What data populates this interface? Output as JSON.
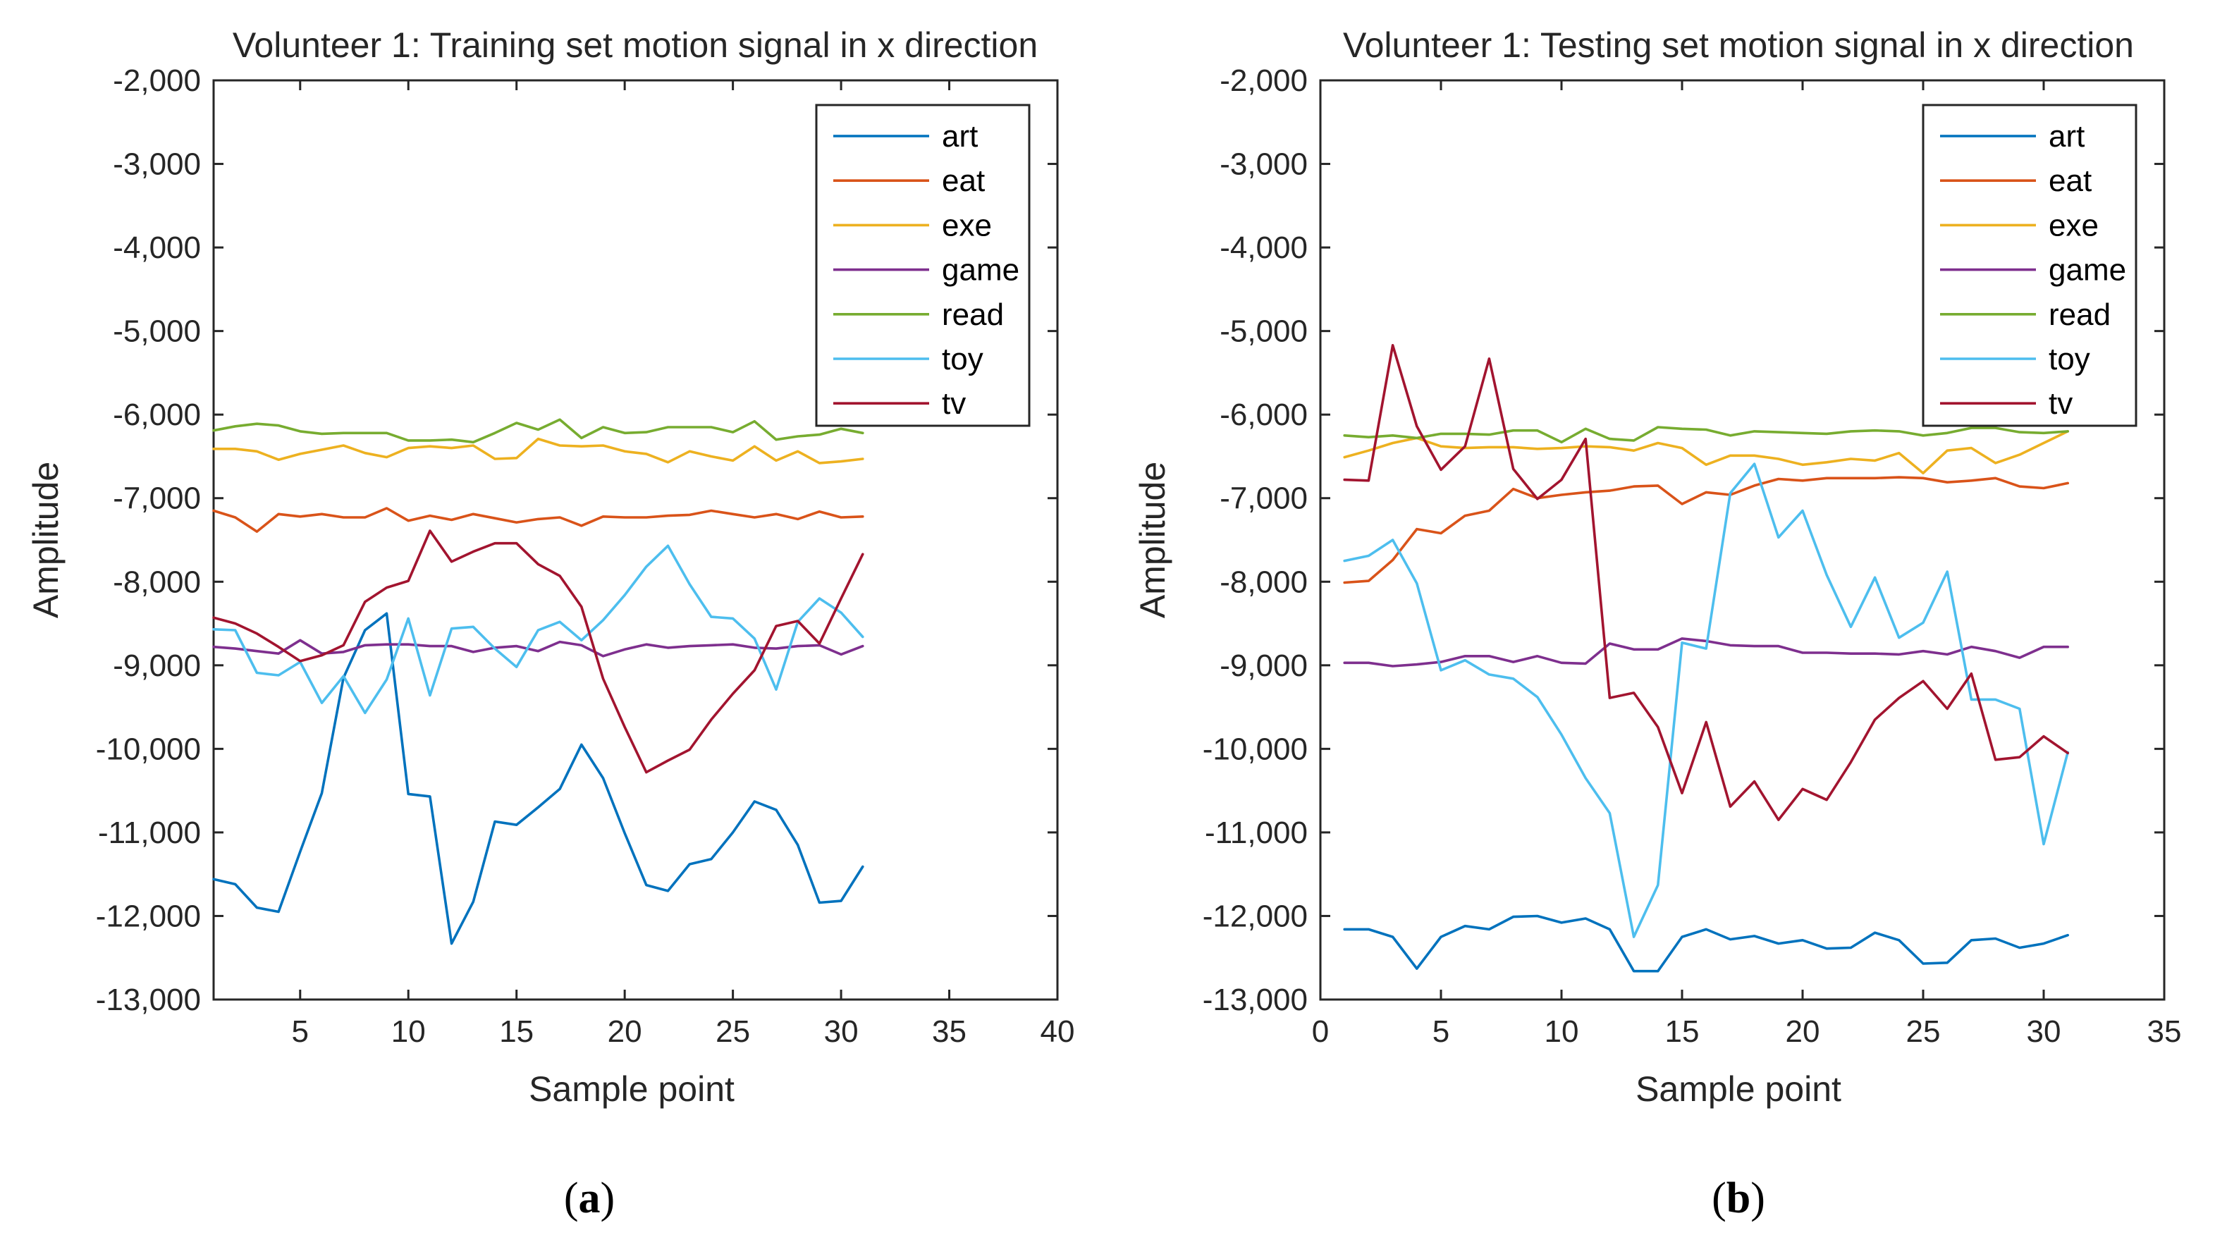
{
  "figure": {
    "panel_labels": [
      {
        "open": "(",
        "letter": "a",
        "close": ")"
      },
      {
        "open": "(",
        "letter": "b",
        "close": ")"
      }
    ]
  },
  "chart_data": [
    {
      "type": "line",
      "title": "Volunteer 1: Training set motion signal in x direction",
      "xlabel": "Sample point",
      "ylabel": "Amplitude",
      "xlim": [
        1,
        40
      ],
      "ylim": [
        -13000,
        -2000
      ],
      "xticks": [
        5,
        10,
        15,
        20,
        25,
        30,
        35,
        40
      ],
      "yticks": [
        -2000,
        -3000,
        -4000,
        -5000,
        -6000,
        -7000,
        -8000,
        -9000,
        -10000,
        -11000,
        -12000,
        -13000
      ],
      "ytick_labels": [
        "-2,000",
        "-3,000",
        "-4,000",
        "-5,000",
        "-6,000",
        "-7,000",
        "-8,000",
        "-9,000",
        "-10,000",
        "-11,000",
        "-12,000",
        "-13,000"
      ],
      "legend_position": "top-right",
      "x": [
        1,
        2,
        3,
        4,
        5,
        6,
        7,
        8,
        9,
        10,
        11,
        12,
        13,
        14,
        15,
        16,
        17,
        18,
        19,
        20,
        21,
        22,
        23,
        24,
        25,
        26,
        27,
        28,
        29,
        30,
        31
      ],
      "series": [
        {
          "name": "art",
          "color": "#0072BD",
          "values": [
            -11560,
            -11620,
            -11900,
            -11950,
            -11230,
            -10530,
            -9150,
            -8580,
            -8380,
            -10540,
            -10570,
            -12330,
            -11830,
            -10870,
            -10910,
            -10700,
            -10480,
            -9950,
            -10350,
            -11010,
            -11630,
            -11700,
            -11380,
            -11320,
            -11000,
            -10630,
            -10730,
            -11150,
            -11840,
            -11820,
            -11410
          ]
        },
        {
          "name": "eat",
          "color": "#D95319",
          "values": [
            -7150,
            -7230,
            -7400,
            -7190,
            -7220,
            -7190,
            -7230,
            -7230,
            -7120,
            -7270,
            -7210,
            -7260,
            -7190,
            -7240,
            -7290,
            -7250,
            -7230,
            -7330,
            -7220,
            -7230,
            -7230,
            -7210,
            -7200,
            -7150,
            -7190,
            -7230,
            -7190,
            -7250,
            -7160,
            -7230,
            -7220
          ]
        },
        {
          "name": "exe",
          "color": "#EDB120",
          "values": [
            -6410,
            -6410,
            -6440,
            -6540,
            -6470,
            -6420,
            -6370,
            -6460,
            -6510,
            -6400,
            -6380,
            -6400,
            -6370,
            -6530,
            -6520,
            -6290,
            -6370,
            -6380,
            -6370,
            -6440,
            -6470,
            -6570,
            -6440,
            -6500,
            -6550,
            -6380,
            -6550,
            -6440,
            -6580,
            -6560,
            -6530
          ]
        },
        {
          "name": "game",
          "color": "#7E2F8E",
          "values": [
            -8780,
            -8800,
            -8830,
            -8860,
            -8700,
            -8860,
            -8840,
            -8760,
            -8750,
            -8750,
            -8770,
            -8770,
            -8840,
            -8790,
            -8770,
            -8830,
            -8720,
            -8760,
            -8890,
            -8810,
            -8750,
            -8790,
            -8770,
            -8760,
            -8750,
            -8790,
            -8800,
            -8770,
            -8760,
            -8870,
            -8770
          ]
        },
        {
          "name": "read",
          "color": "#77AC30",
          "values": [
            -6190,
            -6140,
            -6110,
            -6130,
            -6200,
            -6230,
            -6220,
            -6220,
            -6220,
            -6310,
            -6310,
            -6300,
            -6330,
            -6220,
            -6100,
            -6180,
            -6060,
            -6280,
            -6150,
            -6220,
            -6210,
            -6150,
            -6150,
            -6150,
            -6210,
            -6080,
            -6300,
            -6260,
            -6240,
            -6170,
            -6220
          ]
        },
        {
          "name": "toy",
          "color": "#4DBEEE",
          "values": [
            -8570,
            -8580,
            -9090,
            -9120,
            -8960,
            -9450,
            -9130,
            -9570,
            -9170,
            -8440,
            -9360,
            -8560,
            -8540,
            -8800,
            -9020,
            -8580,
            -8480,
            -8700,
            -8460,
            -8160,
            -7820,
            -7570,
            -8030,
            -8420,
            -8440,
            -8680,
            -9290,
            -8480,
            -8200,
            -8370,
            -8660
          ]
        },
        {
          "name": "tv",
          "color": "#A2142F",
          "values": [
            -8430,
            -8500,
            -8620,
            -8780,
            -8950,
            -8880,
            -8760,
            -8240,
            -8070,
            -7990,
            -7390,
            -7760,
            -7640,
            -7540,
            -7540,
            -7790,
            -7930,
            -8300,
            -9160,
            -9740,
            -10280,
            -10140,
            -10010,
            -9650,
            -9340,
            -9060,
            -8530,
            -8470,
            -8740,
            -8200,
            -7670
          ]
        }
      ]
    },
    {
      "type": "line",
      "title": "Volunteer 1: Testing set motion signal in x direction",
      "xlabel": "Sample point",
      "ylabel": "Amplitude",
      "xlim": [
        0,
        35
      ],
      "ylim": [
        -13000,
        -2000
      ],
      "xticks": [
        0,
        5,
        10,
        15,
        20,
        25,
        30,
        35
      ],
      "yticks": [
        -2000,
        -3000,
        -4000,
        -5000,
        -6000,
        -7000,
        -8000,
        -9000,
        -10000,
        -11000,
        -12000,
        -13000
      ],
      "ytick_labels": [
        "-2,000",
        "-3,000",
        "-4,000",
        "-5,000",
        "-6,000",
        "-7,000",
        "-8,000",
        "-9,000",
        "-10,000",
        "-11,000",
        "-12,000",
        "-13,000"
      ],
      "legend_position": "top-right",
      "x": [
        1,
        2,
        3,
        4,
        5,
        6,
        7,
        8,
        9,
        10,
        11,
        12,
        13,
        14,
        15,
        16,
        17,
        18,
        19,
        20,
        21,
        22,
        23,
        24,
        25,
        26,
        27,
        28,
        29,
        30,
        31
      ],
      "series": [
        {
          "name": "art",
          "color": "#0072BD",
          "values": [
            -12160,
            -12160,
            -12250,
            -12630,
            -12250,
            -12120,
            -12160,
            -12010,
            -12000,
            -12080,
            -12030,
            -12160,
            -12660,
            -12660,
            -12250,
            -12160,
            -12280,
            -12240,
            -12330,
            -12290,
            -12390,
            -12380,
            -12200,
            -12290,
            -12570,
            -12560,
            -12290,
            -12270,
            -12380,
            -12330,
            -12230
          ]
        },
        {
          "name": "eat",
          "color": "#D95319",
          "values": [
            -8010,
            -7990,
            -7740,
            -7370,
            -7420,
            -7210,
            -7150,
            -6890,
            -7000,
            -6960,
            -6930,
            -6910,
            -6860,
            -6850,
            -7070,
            -6930,
            -6960,
            -6850,
            -6770,
            -6790,
            -6760,
            -6760,
            -6760,
            -6750,
            -6760,
            -6810,
            -6790,
            -6760,
            -6860,
            -6880,
            -6820
          ]
        },
        {
          "name": "exe",
          "color": "#EDB120",
          "values": [
            -6510,
            -6430,
            -6340,
            -6280,
            -6380,
            -6400,
            -6390,
            -6390,
            -6410,
            -6400,
            -6380,
            -6390,
            -6430,
            -6340,
            -6400,
            -6600,
            -6490,
            -6490,
            -6530,
            -6600,
            -6570,
            -6530,
            -6550,
            -6460,
            -6700,
            -6430,
            -6400,
            -6580,
            -6480,
            -6340,
            -6200
          ]
        },
        {
          "name": "game",
          "color": "#7E2F8E",
          "values": [
            -8970,
            -8970,
            -9010,
            -8990,
            -8960,
            -8890,
            -8890,
            -8960,
            -8890,
            -8970,
            -8980,
            -8740,
            -8810,
            -8810,
            -8680,
            -8710,
            -8760,
            -8770,
            -8770,
            -8850,
            -8850,
            -8860,
            -8860,
            -8870,
            -8830,
            -8870,
            -8780,
            -8830,
            -8910,
            -8780,
            -8780
          ]
        },
        {
          "name": "read",
          "color": "#77AC30",
          "values": [
            -6250,
            -6270,
            -6250,
            -6280,
            -6230,
            -6230,
            -6240,
            -6190,
            -6190,
            -6330,
            -6170,
            -6290,
            -6310,
            -6150,
            -6170,
            -6180,
            -6250,
            -6200,
            -6210,
            -6220,
            -6230,
            -6200,
            -6190,
            -6200,
            -6250,
            -6220,
            -6160,
            -6160,
            -6210,
            -6220,
            -6200
          ]
        },
        {
          "name": "toy",
          "color": "#4DBEEE",
          "values": [
            -7750,
            -7690,
            -7500,
            -8020,
            -9060,
            -8940,
            -9110,
            -9160,
            -9380,
            -9830,
            -10350,
            -10770,
            -12250,
            -11630,
            -8730,
            -8800,
            -6940,
            -6590,
            -7470,
            -7150,
            -7920,
            -8540,
            -7950,
            -8670,
            -8490,
            -7880,
            -9410,
            -9410,
            -9520,
            -11140,
            -10040
          ]
        },
        {
          "name": "tv",
          "color": "#A2142F",
          "values": [
            -6780,
            -6790,
            -5170,
            -6140,
            -6660,
            -6380,
            -5330,
            -6650,
            -7010,
            -6780,
            -6290,
            -9390,
            -9330,
            -9740,
            -10530,
            -9680,
            -10690,
            -10390,
            -10850,
            -10480,
            -10610,
            -10160,
            -9650,
            -9390,
            -9190,
            -9520,
            -9100,
            -10130,
            -10100,
            -9850,
            -10050
          ]
        }
      ]
    }
  ]
}
